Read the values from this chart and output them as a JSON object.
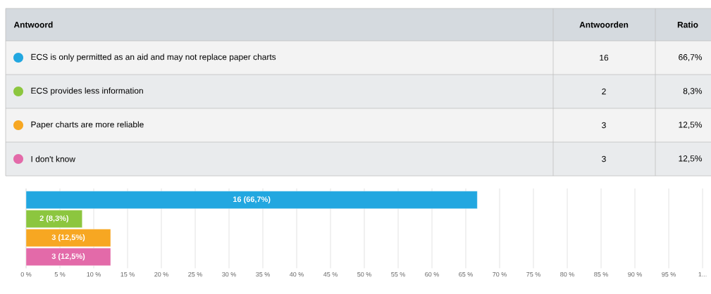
{
  "chart_data": [
    {
      "type": "other",
      "categories": [
        "ECS is only permitted as an aid and may not replace paper charts",
        "ECS provides less information",
        "Paper charts are more reliable",
        "I don't know"
      ],
      "values": [
        16,
        2,
        3,
        3
      ],
      "data_labels": true,
      "annotations": [
        "Antwoord",
        "Antwoorden",
        "Ratio",
        "66,7%",
        "8,3%",
        "12,5%",
        "12,5%"
      ]
    },
    {
      "type": "bar",
      "orientation": "horizontal",
      "categories": [
        null,
        null,
        null,
        null
      ],
      "values": [
        66.7,
        8.3,
        12.5,
        12.5
      ],
      "colors": [
        "#22a7e0",
        "#8cc63f",
        "#f7a722",
        "#e36aa9"
      ],
      "value_labels": [
        "16 (66,7%)",
        "2 (8,3%)",
        "3 (12,5%)",
        "3 (12,5%)"
      ],
      "xlim": [
        0,
        100
      ],
      "xticks": [
        {
          "value": 0,
          "label": "0 %"
        },
        {
          "value": 5,
          "label": "5 %"
        },
        {
          "value": 10,
          "label": "10 %"
        },
        {
          "value": 15,
          "label": "15 %"
        },
        {
          "value": 20,
          "label": "20 %"
        },
        {
          "value": 25,
          "label": "25 %"
        },
        {
          "value": 30,
          "label": "30 %"
        },
        {
          "value": 35,
          "label": "35 %"
        },
        {
          "value": 40,
          "label": "40 %"
        },
        {
          "value": 45,
          "label": "45 %"
        },
        {
          "value": 50,
          "label": "50 %"
        },
        {
          "value": 55,
          "label": "55 %"
        },
        {
          "value": 60,
          "label": "60 %"
        },
        {
          "value": 65,
          "label": "65 %"
        },
        {
          "value": 70,
          "label": "70 %"
        },
        {
          "value": 75,
          "label": "75 %"
        },
        {
          "value": 80,
          "label": "80 %"
        },
        {
          "value": 85,
          "label": "85 %"
        },
        {
          "value": 90,
          "label": "90 %"
        },
        {
          "value": 95,
          "label": "95 %"
        },
        {
          "value": 100,
          "label": "1..."
        }
      ],
      "grid": "x"
    }
  ]
}
